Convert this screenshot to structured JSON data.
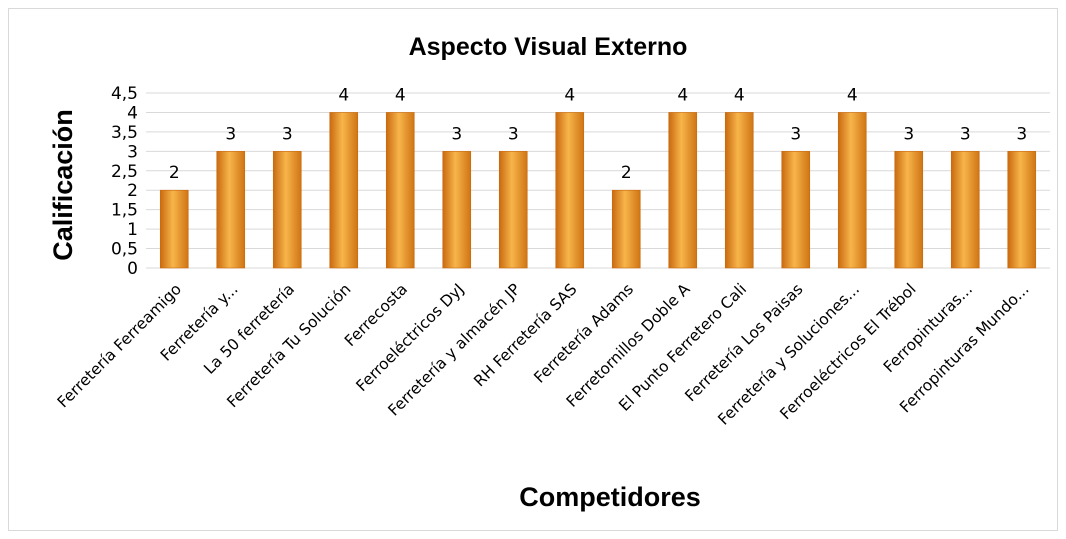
{
  "chart_data": {
    "type": "bar",
    "title": "Aspecto Visual Externo",
    "xlabel": "Competidores",
    "ylabel": "Calificación",
    "ylim": [
      0,
      4.5
    ],
    "ytick_labels": [
      "0",
      "0,5",
      "1",
      "1,5",
      "2",
      "2,5",
      "3",
      "3,5",
      "4",
      "4,5"
    ],
    "grid": true,
    "legend": "none",
    "bar_color": "#f0a53a",
    "bar_color_dark": "#c96a10",
    "categories": [
      "Ferretería Ferreamigo",
      "Ferretería y...",
      "La 50 ferretería",
      "Ferretería Tu Solución",
      "Ferrecosta",
      "Ferroeléctricos DyJ",
      "Ferretería y almacén JP",
      "RH Ferretería SAS",
      "Ferretería Adams",
      "Ferretornillos Doble A",
      "El Punto Ferretero Cali",
      "Ferretería Los Paisas",
      "Ferretería y Soluciones...",
      "Ferroeléctricos El Trébol",
      "Ferropinturas...",
      "Ferropinturas Mundo..."
    ],
    "values": [
      2,
      3,
      3,
      4,
      4,
      3,
      3,
      4,
      2,
      4,
      4,
      3,
      4,
      3,
      3,
      3
    ]
  }
}
